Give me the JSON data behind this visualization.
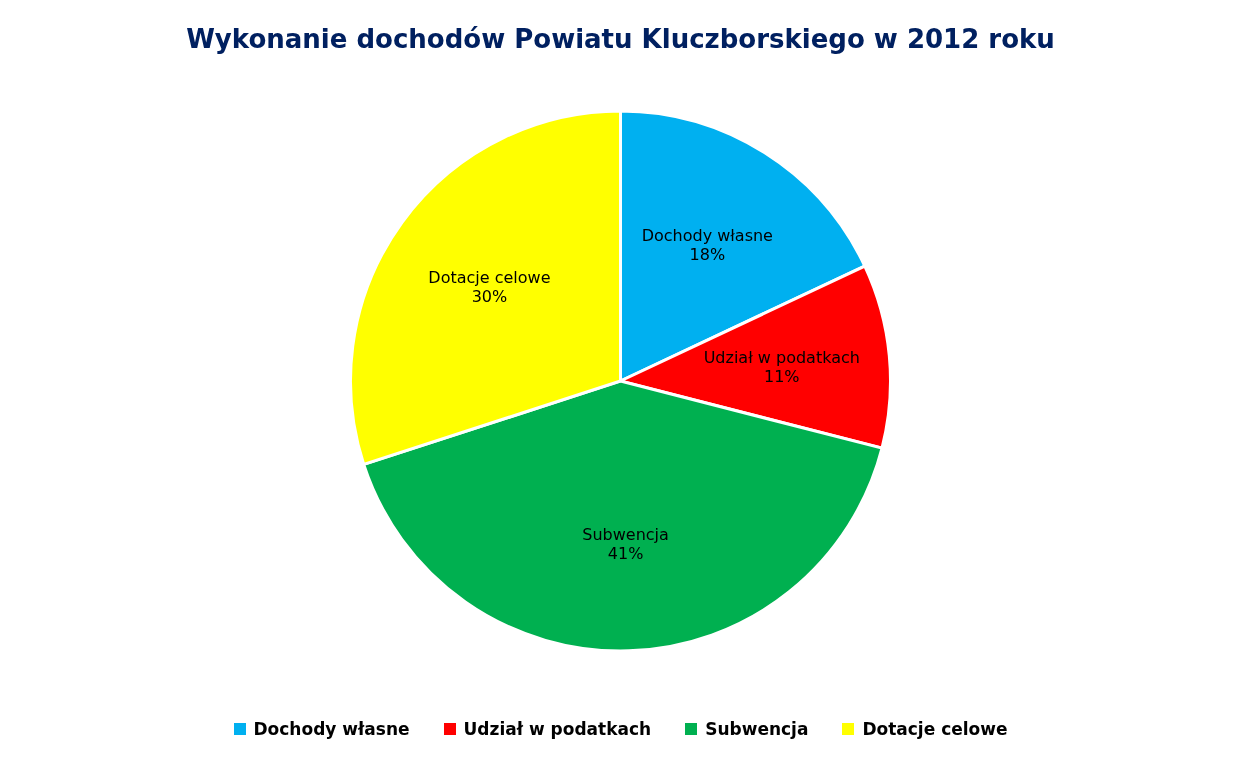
{
  "chart_data": {
    "type": "pie",
    "title": "Wykonanie dochodów Powiatu Kluczborskiego w 2012 roku",
    "categories": [
      "Dochody własne",
      "Udział w podatkach",
      "Subwencja",
      "Dotacje celowe"
    ],
    "values": [
      18,
      11,
      41,
      30
    ],
    "value_labels": [
      "18%",
      "11%",
      "41%",
      "30%"
    ],
    "colors": [
      "#00b0f0",
      "#ff0000",
      "#00b050",
      "#ffff00"
    ],
    "legend": "bottom"
  }
}
